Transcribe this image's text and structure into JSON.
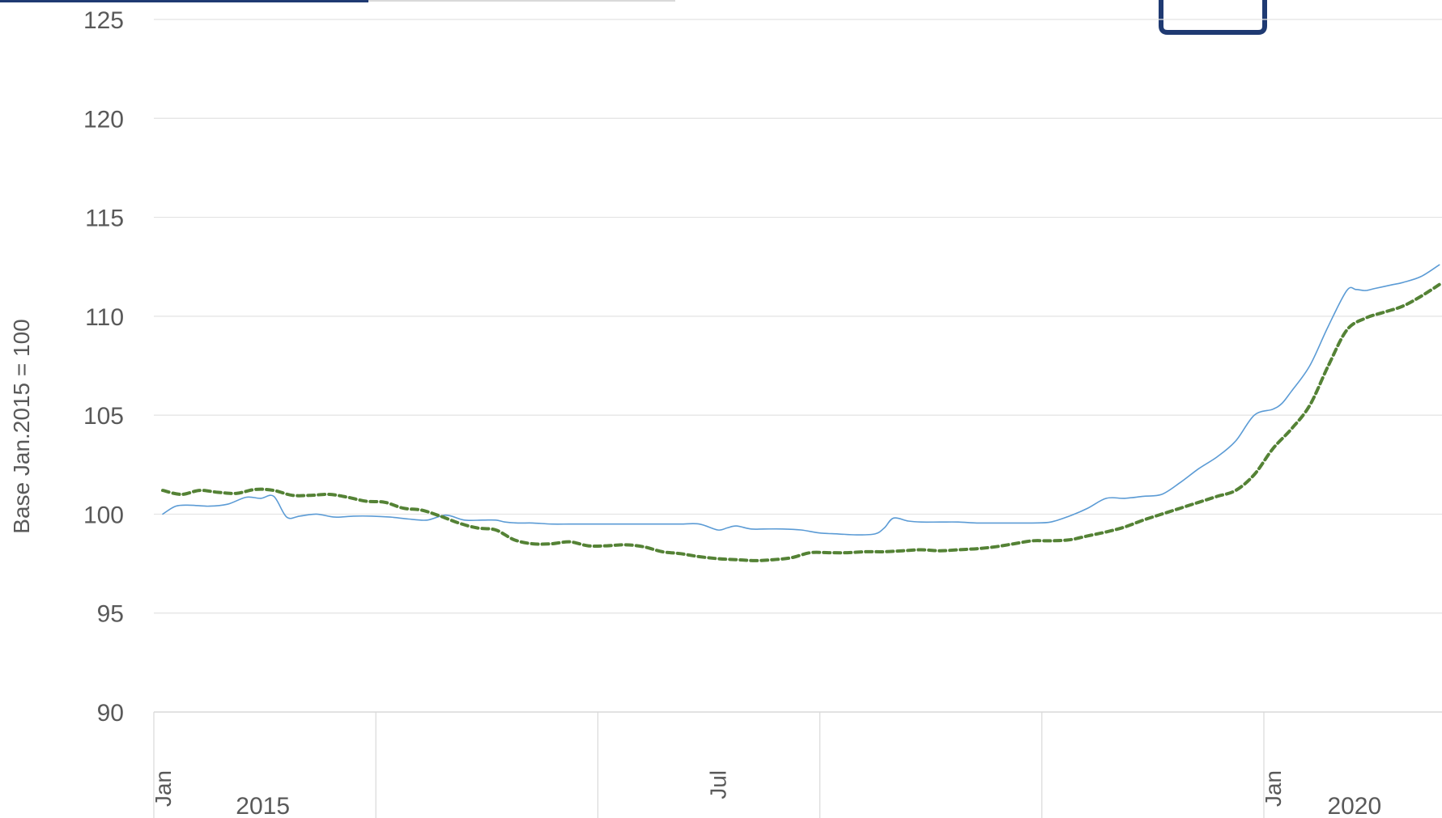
{
  "chart_data": {
    "type": "line",
    "title": "",
    "ylabel": "Base Jan.2015 = 100",
    "xlabel": "",
    "ylim": [
      90,
      125
    ],
    "yticks": [
      90,
      95,
      100,
      105,
      110,
      115,
      120,
      125
    ],
    "grid": true,
    "x_month_labels": [
      {
        "label": "Jan",
        "month_index": 0
      },
      {
        "label": "Jul",
        "month_index": 30
      },
      {
        "label": "Jan",
        "month_index": 60
      }
    ],
    "x_year_labels": [
      {
        "label": "2015",
        "center_month": 5.5
      },
      {
        "label": "2020",
        "center_month": 64.5
      }
    ],
    "x_group_dividers": [
      0,
      12,
      24,
      36,
      48,
      60
    ],
    "x_range": [
      0,
      70
    ],
    "series": [
      {
        "color": "#5b9bd5",
        "style": "solid",
        "x": [
          0,
          0.7,
          1.5,
          2.5,
          3.5,
          4.5,
          5.3,
          6,
          6.7,
          7.4,
          8.3,
          9.3,
          10.3,
          11.3,
          12.3,
          13.3,
          14.3,
          15.3,
          16.3,
          17.3,
          18,
          18.5,
          19.2,
          20,
          21,
          22,
          23,
          24,
          25,
          26,
          27,
          28,
          29,
          30,
          30.5,
          31,
          31.8,
          32.5,
          33.5,
          34.5,
          35.5,
          36.5,
          37.5,
          38.5,
          39,
          39.5,
          40.3,
          41,
          42,
          43,
          44,
          45,
          46,
          47,
          48,
          49,
          50,
          51,
          52,
          53,
          54,
          55,
          56,
          57,
          58,
          59,
          60,
          60.5,
          61,
          62,
          63,
          64,
          64.5,
          65,
          65.5,
          66,
          66.5,
          67,
          68,
          69,
          70
        ],
        "values": [
          100.0,
          100.4,
          100.45,
          100.4,
          100.5,
          100.85,
          100.8,
          100.9,
          99.85,
          99.9,
          100.0,
          99.85,
          99.9,
          99.9,
          99.85,
          99.75,
          99.7,
          99.95,
          99.7,
          99.7,
          99.7,
          99.6,
          99.55,
          99.55,
          99.5,
          99.5,
          99.5,
          99.5,
          99.5,
          99.5,
          99.5,
          99.5,
          99.5,
          99.2,
          99.3,
          99.4,
          99.25,
          99.25,
          99.25,
          99.2,
          99.05,
          99.0,
          98.95,
          99.0,
          99.3,
          99.8,
          99.65,
          99.6,
          99.6,
          99.6,
          99.55,
          99.55,
          99.55,
          99.55,
          99.6,
          99.9,
          100.3,
          100.8,
          100.8,
          100.9,
          101.0,
          101.6,
          102.3,
          102.9,
          103.7,
          105.0,
          105.3,
          105.6,
          106.2,
          107.5,
          109.5,
          111.3,
          111.35,
          111.3,
          111.4,
          111.5,
          111.6,
          111.7,
          112.0,
          112.6,
          112.8
        ]
      },
      {
        "color": "#548235",
        "style": "dashed",
        "x": [
          0,
          1,
          2,
          3,
          4,
          5,
          6,
          7,
          8,
          9,
          10,
          11,
          12,
          13,
          14,
          15,
          16,
          17,
          18,
          19,
          20,
          21,
          22,
          23,
          24,
          25,
          26,
          27,
          28,
          29,
          30,
          31,
          32,
          33,
          34,
          35,
          36,
          37,
          38,
          39,
          40,
          41,
          42,
          43,
          44,
          45,
          46,
          47,
          48,
          49,
          50,
          51,
          52,
          53,
          54,
          55,
          56,
          57,
          58,
          59,
          60,
          61,
          62,
          63,
          64,
          65,
          66,
          67,
          68,
          69,
          70
        ],
        "values": [
          101.2,
          101.0,
          101.2,
          101.1,
          101.05,
          101.25,
          101.2,
          100.95,
          100.95,
          101.0,
          100.85,
          100.65,
          100.6,
          100.3,
          100.2,
          99.9,
          99.55,
          99.3,
          99.2,
          98.7,
          98.5,
          98.5,
          98.6,
          98.4,
          98.4,
          98.45,
          98.35,
          98.1,
          98.0,
          97.85,
          97.75,
          97.7,
          97.65,
          97.7,
          97.8,
          98.05,
          98.05,
          98.05,
          98.1,
          98.1,
          98.15,
          98.2,
          98.15,
          98.2,
          98.25,
          98.35,
          98.5,
          98.65,
          98.65,
          98.7,
          98.9,
          99.1,
          99.35,
          99.7,
          100.0,
          100.3,
          100.6,
          100.9,
          101.2,
          102.0,
          103.3,
          104.3,
          105.5,
          107.5,
          109.3,
          109.9,
          110.2,
          110.5,
          111.0,
          111.6,
          112.0
        ]
      }
    ]
  }
}
